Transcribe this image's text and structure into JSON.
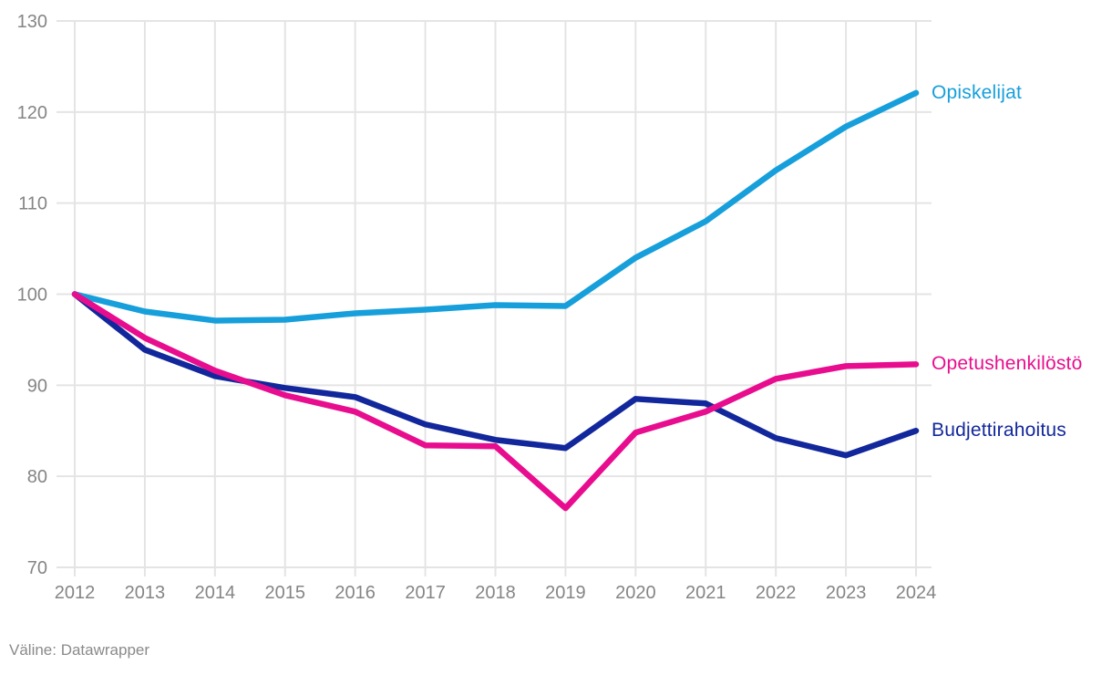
{
  "chart": {
    "source_label": "Väline: Datawrapper"
  },
  "chart_data": {
    "type": "line",
    "x": [
      2012,
      2013,
      2014,
      2015,
      2016,
      2017,
      2018,
      2019,
      2020,
      2021,
      2022,
      2023,
      2024
    ],
    "series": [
      {
        "name": "Opiskelijat",
        "color": "#169fdb",
        "values": [
          100,
          98.1,
          97.1,
          97.2,
          97.9,
          98.3,
          98.8,
          98.7,
          104.0,
          108.0,
          113.6,
          118.4,
          122.1
        ]
      },
      {
        "name": "Opetushenkilöstö",
        "color": "#e80d8e",
        "values": [
          100,
          95.2,
          91.6,
          88.9,
          87.1,
          83.4,
          83.3,
          76.5,
          84.8,
          87.1,
          90.7,
          92.1,
          92.3
        ]
      },
      {
        "name": "Budjettirahoitus",
        "color": "#12279b",
        "values": [
          100,
          93.9,
          91.0,
          89.7,
          88.7,
          85.7,
          84.0,
          83.1,
          88.5,
          88.0,
          84.2,
          82.3,
          85.0
        ]
      }
    ],
    "ylim": [
      70,
      130
    ],
    "yticks": [
      70,
      80,
      90,
      100,
      110,
      120,
      130
    ],
    "grid": true,
    "legend_position": "right-inline-labels",
    "title": "",
    "xlabel": "",
    "ylabel": ""
  }
}
